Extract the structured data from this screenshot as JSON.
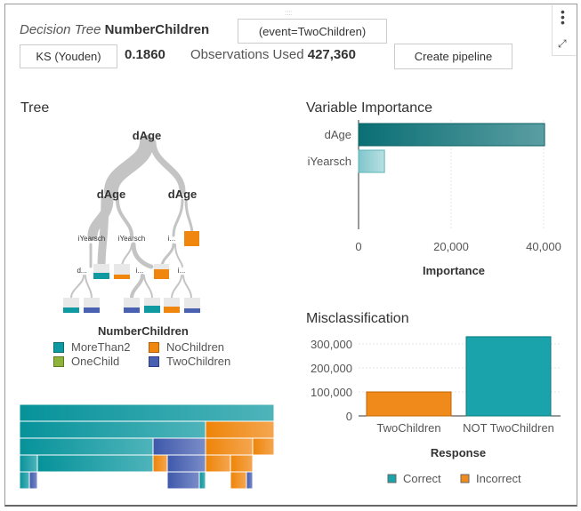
{
  "header": {
    "title_italic": "Decision Tree",
    "title_bold": "NumberChildren",
    "event_button": "(event=TwoChildren)",
    "stat_button": "KS (Youden)",
    "stat_value": "0.1860",
    "obs_label": "Observations Used",
    "obs_value": "427,360",
    "pipeline_button": "Create pipeline"
  },
  "tree": {
    "title": "Tree",
    "nodes": {
      "root": "dAge",
      "left": "dAge",
      "right": "dAge",
      "ll": "iYearsch",
      "lr": "iYearsch",
      "rl": "i...",
      "lll": "d...",
      "lrr": "i...",
      "rlr": "i..."
    },
    "legend_title": "NumberChildren",
    "legend": [
      {
        "label": "MoreThan2",
        "color": "#0e9aa0"
      },
      {
        "label": "NoChildren",
        "color": "#f0860e"
      },
      {
        "label": "OneChild",
        "color": "#8db33a"
      },
      {
        "label": "TwoChildren",
        "color": "#4a60b0"
      }
    ]
  },
  "chart_data": [
    {
      "type": "bar",
      "orientation": "horizontal",
      "title": "Variable Importance",
      "categories": [
        "dAge",
        "iYearsch"
      ],
      "values": [
        40200,
        5600
      ],
      "xlabel": "Importance",
      "xticks": [
        "0",
        "20,000",
        "40,000"
      ],
      "xlim": [
        0,
        45000
      ]
    },
    {
      "type": "bar",
      "title": "Misclassification",
      "categories": [
        "TwoChildren",
        "NOT TwoChildren"
      ],
      "series": [
        {
          "name": "Correct",
          "color": "#1aa3aa",
          "values": [
            0,
            330000
          ]
        },
        {
          "name": "Incorrect",
          "color": "#f08a1a",
          "values": [
            100000,
            0
          ]
        }
      ],
      "xlabel": "Response",
      "yticks": [
        "0",
        "100,000",
        "200,000",
        "300,000"
      ],
      "ylim": [
        0,
        340000
      ]
    }
  ]
}
